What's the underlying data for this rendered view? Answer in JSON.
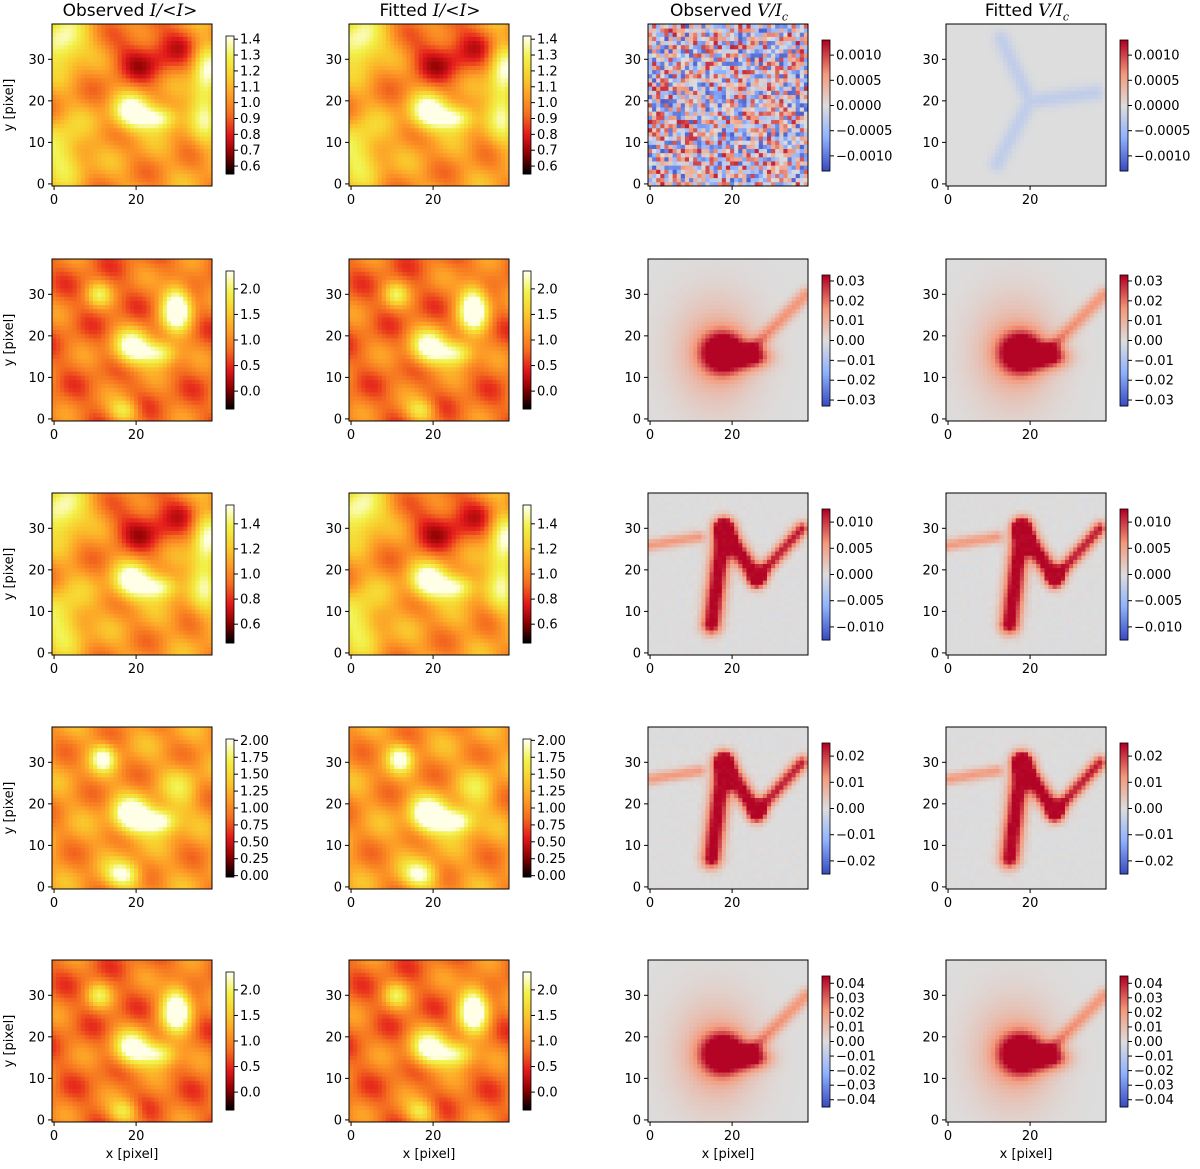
{
  "figure": {
    "column_titles": [
      {
        "prefix": "Observed",
        "symbol": "I/<I>",
        "sub": ""
      },
      {
        "prefix": "Fitted",
        "symbol": "I/<I>",
        "sub": ""
      },
      {
        "prefix": "Observed",
        "symbol": "V/I",
        "sub": "c"
      },
      {
        "prefix": "Fitted",
        "symbol": "V/I",
        "sub": "c"
      }
    ],
    "xlabel": "x [pixel]",
    "ylabel": "y [pixel]"
  },
  "colors": {
    "intensity_cmap": [
      "#000000",
      "#8b0000",
      "#e31a1c",
      "#f46d1f",
      "#fd9e27",
      "#f8cf2e",
      "#f2f14a",
      "#ffffe8"
    ],
    "velocity_cmap": [
      "#3a4cc0",
      "#8db0fe",
      "#dddddd",
      "#f4987a",
      "#b40426"
    ],
    "panel_background_stokes": "#d8d8d8"
  },
  "chart_data": [
    {
      "row": 1,
      "col": 1,
      "type": "heatmap",
      "title": "Observed I/<I>",
      "map": "intensity",
      "variant": "A",
      "xlim": [
        0,
        39
      ],
      "ylim": [
        0,
        39
      ],
      "xticks": [
        "0",
        "20"
      ],
      "yticks": [
        "0",
        "10",
        "20",
        "30"
      ],
      "ylabel": "y [pixel]",
      "xlabel": "",
      "colorbar": {
        "min": 0.55,
        "max": 1.42,
        "ticks": [
          "0.6",
          "0.7",
          "0.8",
          "0.9",
          "1.0",
          "1.1",
          "1.2",
          "1.3",
          "1.4"
        ]
      }
    },
    {
      "row": 1,
      "col": 2,
      "type": "heatmap",
      "title": "Fitted I/<I>",
      "map": "intensity",
      "variant": "A",
      "xlim": [
        0,
        39
      ],
      "ylim": [
        0,
        39
      ],
      "xticks": [
        "0",
        "20"
      ],
      "yticks": [
        "0",
        "10",
        "20",
        "30"
      ],
      "ylabel": "",
      "xlabel": "",
      "colorbar": {
        "min": 0.55,
        "max": 1.42,
        "ticks": [
          "0.6",
          "0.7",
          "0.8",
          "0.9",
          "1.0",
          "1.1",
          "1.2",
          "1.3",
          "1.4"
        ]
      }
    },
    {
      "row": 1,
      "col": 3,
      "type": "heatmap",
      "title": "Observed V/Ic",
      "map": "velocity",
      "variant": "noise",
      "xlim": [
        0,
        39
      ],
      "ylim": [
        0,
        39
      ],
      "xticks": [
        "0",
        "20"
      ],
      "yticks": [
        "0",
        "10",
        "20",
        "30"
      ],
      "ylabel": "",
      "xlabel": "",
      "colorbar": {
        "min": -0.0013,
        "max": 0.0013,
        "ticks": [
          "−0.0010",
          "−0.0005",
          "0.0000",
          "0.0005",
          "0.0010"
        ]
      }
    },
    {
      "row": 1,
      "col": 4,
      "type": "heatmap",
      "title": "Fitted V/Ic",
      "map": "velocity",
      "variant": "faint",
      "xlim": [
        0,
        39
      ],
      "ylim": [
        0,
        39
      ],
      "xticks": [
        "0",
        "20"
      ],
      "yticks": [
        "0",
        "10",
        "20",
        "30"
      ],
      "ylabel": "",
      "xlabel": "",
      "colorbar": {
        "min": -0.0013,
        "max": 0.0013,
        "ticks": [
          "−0.0010",
          "−0.0005",
          "0.0000",
          "0.0005",
          "0.0010"
        ]
      }
    },
    {
      "row": 2,
      "col": 1,
      "type": "heatmap",
      "map": "intensity",
      "variant": "B",
      "xlim": [
        0,
        39
      ],
      "ylim": [
        0,
        39
      ],
      "xticks": [
        "0",
        "20"
      ],
      "yticks": [
        "0",
        "10",
        "20",
        "30"
      ],
      "ylabel": "y [pixel]",
      "xlabel": "",
      "colorbar": {
        "min": -0.35,
        "max": 2.35,
        "ticks": [
          "0.0",
          "0.5",
          "1.0",
          "1.5",
          "2.0"
        ]
      }
    },
    {
      "row": 2,
      "col": 2,
      "type": "heatmap",
      "map": "intensity",
      "variant": "B",
      "xlim": [
        0,
        39
      ],
      "ylim": [
        0,
        39
      ],
      "xticks": [
        "0",
        "20"
      ],
      "yticks": [
        "0",
        "10",
        "20",
        "30"
      ],
      "ylabel": "",
      "xlabel": "",
      "colorbar": {
        "min": -0.35,
        "max": 2.35,
        "ticks": [
          "0.0",
          "0.5",
          "1.0",
          "1.5",
          "2.0"
        ]
      }
    },
    {
      "row": 2,
      "col": 3,
      "type": "heatmap",
      "map": "velocity",
      "variant": "blob",
      "xlim": [
        0,
        39
      ],
      "ylim": [
        0,
        39
      ],
      "xticks": [
        "0",
        "20"
      ],
      "yticks": [
        "0",
        "10",
        "20",
        "30"
      ],
      "ylabel": "",
      "xlabel": "",
      "colorbar": {
        "min": -0.033,
        "max": 0.033,
        "ticks": [
          "−0.03",
          "−0.02",
          "−0.01",
          "0.00",
          "0.01",
          "0.02",
          "0.03"
        ]
      }
    },
    {
      "row": 2,
      "col": 4,
      "type": "heatmap",
      "map": "velocity",
      "variant": "blob",
      "xlim": [
        0,
        39
      ],
      "ylim": [
        0,
        39
      ],
      "xticks": [
        "0",
        "20"
      ],
      "yticks": [
        "0",
        "10",
        "20",
        "30"
      ],
      "ylabel": "",
      "xlabel": "",
      "colorbar": {
        "min": -0.033,
        "max": 0.033,
        "ticks": [
          "−0.03",
          "−0.02",
          "−0.01",
          "0.00",
          "0.01",
          "0.02",
          "0.03"
        ]
      }
    },
    {
      "row": 3,
      "col": 1,
      "type": "heatmap",
      "map": "intensity",
      "variant": "C",
      "xlim": [
        0,
        39
      ],
      "ylim": [
        0,
        39
      ],
      "xticks": [
        "0",
        "20"
      ],
      "yticks": [
        "0",
        "10",
        "20",
        "30"
      ],
      "ylabel": "y [pixel]",
      "xlabel": "",
      "colorbar": {
        "min": 0.45,
        "max": 1.55,
        "ticks": [
          "0.6",
          "0.8",
          "1.0",
          "1.2",
          "1.4"
        ]
      }
    },
    {
      "row": 3,
      "col": 2,
      "type": "heatmap",
      "map": "intensity",
      "variant": "C",
      "xlim": [
        0,
        39
      ],
      "ylim": [
        0,
        39
      ],
      "xticks": [
        "0",
        "20"
      ],
      "yticks": [
        "0",
        "10",
        "20",
        "30"
      ],
      "ylabel": "",
      "xlabel": "",
      "colorbar": {
        "min": 0.45,
        "max": 1.55,
        "ticks": [
          "0.6",
          "0.8",
          "1.0",
          "1.2",
          "1.4"
        ]
      }
    },
    {
      "row": 3,
      "col": 3,
      "type": "heatmap",
      "map": "velocity",
      "variant": "v",
      "xlim": [
        0,
        39
      ],
      "ylim": [
        0,
        39
      ],
      "xticks": [
        "0",
        "20"
      ],
      "yticks": [
        "0",
        "10",
        "20",
        "30"
      ],
      "ylabel": "",
      "xlabel": "",
      "colorbar": {
        "min": -0.0125,
        "max": 0.0125,
        "ticks": [
          "−0.010",
          "−0.005",
          "0.000",
          "0.005",
          "0.010"
        ]
      }
    },
    {
      "row": 3,
      "col": 4,
      "type": "heatmap",
      "map": "velocity",
      "variant": "v",
      "xlim": [
        0,
        39
      ],
      "ylim": [
        0,
        39
      ],
      "xticks": [
        "0",
        "20"
      ],
      "yticks": [
        "0",
        "10",
        "20",
        "30"
      ],
      "ylabel": "",
      "xlabel": "",
      "colorbar": {
        "min": -0.0125,
        "max": 0.0125,
        "ticks": [
          "−0.010",
          "−0.005",
          "0.000",
          "0.005",
          "0.010"
        ]
      }
    },
    {
      "row": 4,
      "col": 1,
      "type": "heatmap",
      "map": "intensity",
      "variant": "D",
      "xlim": [
        0,
        39
      ],
      "ylim": [
        0,
        39
      ],
      "xticks": [
        "0",
        "20"
      ],
      "yticks": [
        "0",
        "10",
        "20",
        "30"
      ],
      "ylabel": "y [pixel]",
      "xlabel": "",
      "colorbar": {
        "min": -0.02,
        "max": 2.02,
        "ticks": [
          "0.00",
          "0.25",
          "0.50",
          "0.75",
          "1.00",
          "1.25",
          "1.50",
          "1.75",
          "2.00"
        ]
      }
    },
    {
      "row": 4,
      "col": 2,
      "type": "heatmap",
      "map": "intensity",
      "variant": "D",
      "xlim": [
        0,
        39
      ],
      "ylim": [
        0,
        39
      ],
      "xticks": [
        "0",
        "20"
      ],
      "yticks": [
        "0",
        "10",
        "20",
        "30"
      ],
      "ylabel": "",
      "xlabel": "",
      "colorbar": {
        "min": -0.02,
        "max": 2.02,
        "ticks": [
          "0.00",
          "0.25",
          "0.50",
          "0.75",
          "1.00",
          "1.25",
          "1.50",
          "1.75",
          "2.00"
        ]
      }
    },
    {
      "row": 4,
      "col": 3,
      "type": "heatmap",
      "map": "velocity",
      "variant": "v",
      "xlim": [
        0,
        39
      ],
      "ylim": [
        0,
        39
      ],
      "xticks": [
        "0",
        "20"
      ],
      "yticks": [
        "0",
        "10",
        "20",
        "30"
      ],
      "ylabel": "",
      "xlabel": "",
      "colorbar": {
        "min": -0.025,
        "max": 0.025,
        "ticks": [
          "−0.02",
          "−0.01",
          "0.00",
          "0.01",
          "0.02"
        ]
      }
    },
    {
      "row": 4,
      "col": 4,
      "type": "heatmap",
      "map": "velocity",
      "variant": "v",
      "xlim": [
        0,
        39
      ],
      "ylim": [
        0,
        39
      ],
      "xticks": [
        "0",
        "20"
      ],
      "yticks": [
        "0",
        "10",
        "20",
        "30"
      ],
      "ylabel": "",
      "xlabel": "",
      "colorbar": {
        "min": -0.025,
        "max": 0.025,
        "ticks": [
          "−0.02",
          "−0.01",
          "0.00",
          "0.01",
          "0.02"
        ]
      }
    },
    {
      "row": 5,
      "col": 1,
      "type": "heatmap",
      "map": "intensity",
      "variant": "B",
      "xlim": [
        0,
        39
      ],
      "ylim": [
        0,
        39
      ],
      "xticks": [
        "0",
        "20"
      ],
      "yticks": [
        "0",
        "10",
        "20",
        "30"
      ],
      "ylabel": "y [pixel]",
      "xlabel": "x [pixel]",
      "colorbar": {
        "min": -0.35,
        "max": 2.35,
        "ticks": [
          "0.0",
          "0.5",
          "1.0",
          "1.5",
          "2.0"
        ]
      }
    },
    {
      "row": 5,
      "col": 2,
      "type": "heatmap",
      "map": "intensity",
      "variant": "B",
      "xlim": [
        0,
        39
      ],
      "ylim": [
        0,
        39
      ],
      "xticks": [
        "0",
        "20"
      ],
      "yticks": [
        "0",
        "10",
        "20",
        "30"
      ],
      "ylabel": "",
      "xlabel": "x [pixel]",
      "colorbar": {
        "min": -0.35,
        "max": 2.35,
        "ticks": [
          "0.0",
          "0.5",
          "1.0",
          "1.5",
          "2.0"
        ]
      }
    },
    {
      "row": 5,
      "col": 3,
      "type": "heatmap",
      "map": "velocity",
      "variant": "blob",
      "xlim": [
        0,
        39
      ],
      "ylim": [
        0,
        39
      ],
      "xticks": [
        "0",
        "20"
      ],
      "yticks": [
        "0",
        "10",
        "20",
        "30"
      ],
      "ylabel": "",
      "xlabel": "x [pixel]",
      "colorbar": {
        "min": -0.045,
        "max": 0.045,
        "ticks": [
          "−0.04",
          "−0.03",
          "−0.02",
          "−0.01",
          "0.00",
          "0.01",
          "0.02",
          "0.03",
          "0.04"
        ]
      }
    },
    {
      "row": 5,
      "col": 4,
      "type": "heatmap",
      "map": "velocity",
      "variant": "blob",
      "xlim": [
        0,
        39
      ],
      "ylim": [
        0,
        39
      ],
      "xticks": [
        "0",
        "20"
      ],
      "yticks": [
        "0",
        "10",
        "20",
        "30"
      ],
      "ylabel": "",
      "xlabel": "x [pixel]",
      "colorbar": {
        "min": -0.045,
        "max": 0.045,
        "ticks": [
          "−0.04",
          "−0.03",
          "−0.02",
          "−0.01",
          "0.00",
          "0.01",
          "0.02",
          "0.03",
          "0.04"
        ]
      }
    }
  ]
}
